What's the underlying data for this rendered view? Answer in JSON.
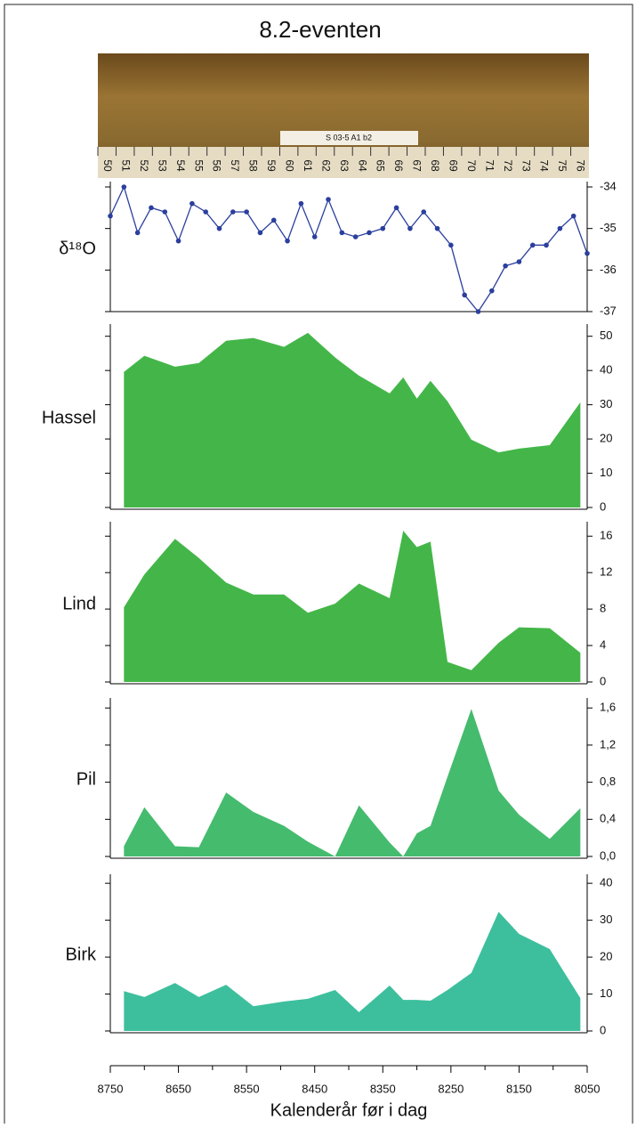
{
  "title": "8.2-eventen",
  "core_photo": {
    "label": "S 03-5 A1 b2",
    "ruler": [
      "50",
      "51",
      "52",
      "53",
      "54",
      "55",
      "56",
      "57",
      "58",
      "59",
      "60",
      "61",
      "62",
      "63",
      "64",
      "65",
      "66",
      "67",
      "68",
      "69",
      "70",
      "71",
      "72",
      "73",
      "74",
      "75",
      "76"
    ]
  },
  "chart_data": [
    {
      "type": "line",
      "ylabel": "δ¹⁸O",
      "color": "#2b3f9e",
      "x": [
        8750,
        8730,
        8710,
        8690,
        8670,
        8650,
        8630,
        8610,
        8590,
        8570,
        8550,
        8530,
        8510,
        8490,
        8470,
        8450,
        8430,
        8410,
        8390,
        8370,
        8350,
        8330,
        8310,
        8290,
        8270,
        8250,
        8230,
        8210,
        8190,
        8170,
        8150,
        8130,
        8110,
        8090,
        8070,
        8050
      ],
      "values": [
        -34.7,
        -34.0,
        -35.1,
        -34.5,
        -34.6,
        -35.3,
        -34.4,
        -34.6,
        -35.0,
        -34.6,
        -34.6,
        -35.1,
        -34.8,
        -35.3,
        -34.4,
        -35.2,
        -34.3,
        -35.1,
        -35.2,
        -35.1,
        -35.0,
        -34.5,
        -35.0,
        -34.6,
        -35.0,
        -35.4,
        -36.6,
        -37.0,
        -36.5,
        -35.9,
        -35.8,
        -35.4,
        -35.4,
        -35.0,
        -34.7,
        -35.6
      ],
      "xlim": [
        8750,
        8050
      ],
      "ylim": [
        -37,
        -34
      ],
      "yticks": [
        -37,
        -36,
        -35,
        -34
      ]
    },
    {
      "type": "area",
      "ylabel": "Hassel",
      "color": "#44b649",
      "x": [
        8730,
        8700,
        8655,
        8620,
        8580,
        8540,
        8495,
        8460,
        8420,
        8385,
        8340,
        8320,
        8300,
        8280,
        8255,
        8220,
        8180,
        8150,
        8105,
        8060
      ],
      "values": [
        39.6,
        44.3,
        41.1,
        42.2,
        48.7,
        49.5,
        46.9,
        51.0,
        43.8,
        38.5,
        33.3,
        38.0,
        31.8,
        37.0,
        31.0,
        19.8,
        16.1,
        17.2,
        18.2,
        30.7
      ],
      "xlim": [
        8750,
        8050
      ],
      "ylim": [
        0,
        52
      ],
      "yticks": [
        0,
        10,
        20,
        30,
        40,
        50
      ]
    },
    {
      "type": "area",
      "ylabel": "Lind",
      "color": "#44b649",
      "x": [
        8730,
        8700,
        8655,
        8620,
        8580,
        8540,
        8495,
        8460,
        8420,
        8385,
        8340,
        8320,
        8300,
        8280,
        8255,
        8220,
        8180,
        8150,
        8105,
        8060
      ],
      "values": [
        8.2,
        11.8,
        15.7,
        13.6,
        10.9,
        9.6,
        9.6,
        7.6,
        8.6,
        10.8,
        9.2,
        16.6,
        14.8,
        15.4,
        2.2,
        1.3,
        4.3,
        6.0,
        5.9,
        3.2
      ],
      "xlim": [
        8750,
        8050
      ],
      "ylim": [
        0,
        17
      ],
      "yticks": [
        0,
        4,
        8,
        12,
        16
      ]
    },
    {
      "type": "area",
      "ylabel": "Pil",
      "color": "#45bb6e",
      "x": [
        8730,
        8700,
        8655,
        8620,
        8580,
        8540,
        8495,
        8460,
        8420,
        8385,
        8340,
        8320,
        8300,
        8280,
        8255,
        8220,
        8180,
        8150,
        8105,
        8060
      ],
      "values": [
        0.11,
        0.53,
        0.11,
        0.1,
        0.69,
        0.48,
        0.33,
        0.16,
        0,
        0.55,
        0.15,
        0,
        0.25,
        0.33,
        0.86,
        1.59,
        0.71,
        0.45,
        0.19,
        0.52
      ],
      "xlim": [
        8750,
        8050
      ],
      "ylim": [
        0,
        1.65
      ],
      "yticks": [
        {
          "value": 0,
          "label": "0,0"
        },
        {
          "value": 0.4,
          "label": "0,4"
        },
        {
          "value": 0.8,
          "label": "0,8"
        },
        {
          "value": 1.2,
          "label": "1,2"
        },
        {
          "value": 1.6,
          "label": "1,6"
        }
      ]
    },
    {
      "type": "area",
      "ylabel": "Birk",
      "color": "#3dbf9d",
      "x": [
        8730,
        8700,
        8655,
        8620,
        8580,
        8540,
        8495,
        8460,
        8420,
        8385,
        8340,
        8320,
        8300,
        8280,
        8255,
        8220,
        8180,
        8150,
        8105,
        8060
      ],
      "values": [
        10.8,
        9.2,
        13.0,
        9.2,
        12.5,
        6.7,
        8.0,
        8.7,
        11.1,
        5.1,
        12.3,
        8.4,
        8.4,
        8.2,
        11.1,
        15.7,
        32.3,
        26.3,
        22.2,
        8.9
      ],
      "xlim": [
        8750,
        8050
      ],
      "ylim": [
        0,
        41
      ],
      "yticks": [
        0,
        10,
        20,
        30,
        40
      ],
      "xlabel": "Kalenderår før i dag",
      "xticks": [
        8750,
        8650,
        8550,
        8450,
        8350,
        8250,
        8150,
        8050
      ]
    }
  ]
}
